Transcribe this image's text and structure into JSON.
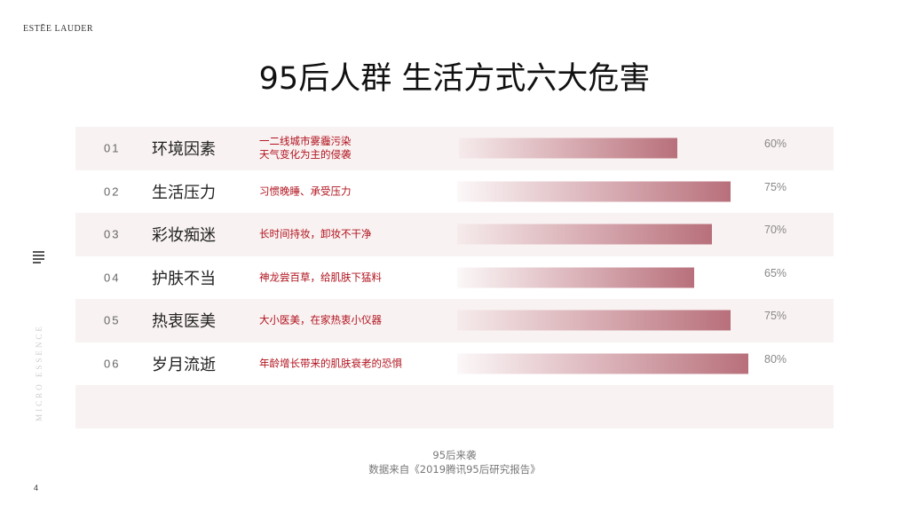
{
  "brand": "ESTĒE LAUDER",
  "title": "95后人群 生活方式六大危害",
  "side_text": "MICRO ESSENCE",
  "page_number": "4",
  "source_line1": "95后来袭",
  "source_line2": "数据来自《2019腾讯95后研究报告》",
  "colors": {
    "bar": "#b8707b",
    "desc": "#b0121d",
    "row_shade": "#f9f2f2"
  },
  "chart_data": {
    "type": "bar",
    "orientation": "horizontal",
    "rows": [
      {
        "num": "01",
        "category": "环境因素",
        "desc": [
          "一二线城市雾霾污染",
          "天气变化为主的侵袭"
        ],
        "value": 60,
        "label": "60%"
      },
      {
        "num": "02",
        "category": "生活压力",
        "desc": [
          "习惯晚睡、承受压力"
        ],
        "value": 75,
        "label": "75%"
      },
      {
        "num": "03",
        "category": "彩妆痴迷",
        "desc": [
          "长时间持妆，卸妆不干净"
        ],
        "value": 70,
        "label": "70%"
      },
      {
        "num": "04",
        "category": "护肤不当",
        "desc": [
          "神龙尝百草，给肌肤下猛料"
        ],
        "value": 65,
        "label": "65%"
      },
      {
        "num": "05",
        "category": "热衷医美",
        "desc": [
          "大小医美，在家热衷小仪器"
        ],
        "value": 75,
        "label": "75%"
      },
      {
        "num": "06",
        "category": "岁月流逝",
        "desc": [
          "年龄增长带来的肌肤衰老的恐惧"
        ],
        "value": 80,
        "label": "80%"
      }
    ]
  }
}
